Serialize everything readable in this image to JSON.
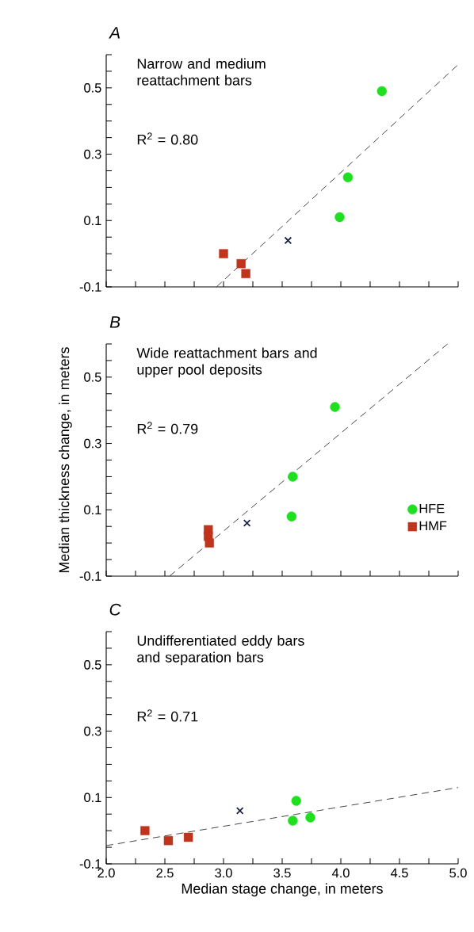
{
  "chart_data": [
    {
      "type": "scatter",
      "title": "A",
      "annotations": [
        "Narrow and medium reattachment bars",
        "R$^{2}$ = 0.80"
      ],
      "xlim": [
        2.0,
        5.0
      ],
      "ylim": [
        -0.1,
        0.6
      ],
      "tick_labels": "y",
      "xticks": [
        {
          "value": 2.0,
          "label": null
        },
        {
          "value": 2.25,
          "label": null
        },
        {
          "value": 2.5,
          "label": null
        },
        {
          "value": 2.75,
          "label": null
        },
        {
          "value": 3.0,
          "label": null
        },
        {
          "value": 3.25,
          "label": null
        },
        {
          "value": 3.5,
          "label": null
        },
        {
          "value": 3.75,
          "label": null
        },
        {
          "value": 4.0,
          "label": null
        },
        {
          "value": 4.25,
          "label": null
        },
        {
          "value": 4.5,
          "label": null
        },
        {
          "value": 4.75,
          "label": null
        },
        {
          "value": 5.0,
          "label": null
        }
      ],
      "yticks": [
        -0.1,
        {
          "value": -0.05,
          "label": null
        },
        {
          "value": 0.0,
          "label": null
        },
        {
          "value": 0.05,
          "label": null
        },
        0.1,
        {
          "value": 0.15,
          "label": null
        },
        {
          "value": 0.2,
          "label": null
        },
        {
          "value": 0.25,
          "label": null
        },
        0.3,
        {
          "value": 0.35,
          "label": null
        },
        {
          "value": 0.4,
          "label": null
        },
        {
          "value": 0.45,
          "label": null
        },
        0.5,
        {
          "value": 0.55,
          "label": null
        },
        {
          "value": 0.6,
          "label": null
        }
      ],
      "series": [
        {
          "type": "line",
          "color": "#444444",
          "line_style": "dashed",
          "marker": "none",
          "x": [
            2.94,
            5.0
          ],
          "values": [
            -0.1,
            0.57
          ]
        },
        {
          "color": "#1fe01f",
          "marker": "circle",
          "x": [
            4.35,
            4.06,
            3.99
          ],
          "values": [
            0.49,
            0.23,
            0.11
          ]
        },
        {
          "color": "#c0331c",
          "marker": "square",
          "x": [
            3.0,
            3.15,
            3.19
          ],
          "values": [
            0.0,
            -0.03,
            -0.06
          ]
        },
        {
          "color": "#1c2545",
          "marker": "cross",
          "x": [
            3.55
          ],
          "values": [
            0.04
          ]
        }
      ]
    },
    {
      "type": "scatter",
      "title": "B",
      "ylabel": "Median thickness change, in meters",
      "annotations": [
        "Wide reattachment bars and upper pool deposits",
        "R$^{2}$ = 0.79"
      ],
      "xlim": [
        2.0,
        5.0
      ],
      "ylim": [
        -0.1,
        0.6
      ],
      "tick_labels": "y",
      "legend": "right",
      "xticks": [
        {
          "value": 2.0,
          "label": null
        },
        {
          "value": 2.25,
          "label": null
        },
        {
          "value": 2.5,
          "label": null
        },
        {
          "value": 2.75,
          "label": null
        },
        {
          "value": 3.0,
          "label": null
        },
        {
          "value": 3.25,
          "label": null
        },
        {
          "value": 3.5,
          "label": null
        },
        {
          "value": 3.75,
          "label": null
        },
        {
          "value": 4.0,
          "label": null
        },
        {
          "value": 4.25,
          "label": null
        },
        {
          "value": 4.5,
          "label": null
        },
        {
          "value": 4.75,
          "label": null
        },
        {
          "value": 5.0,
          "label": null
        }
      ],
      "yticks": [
        -0.1,
        {
          "value": -0.05,
          "label": null
        },
        {
          "value": 0.0,
          "label": null
        },
        {
          "value": 0.05,
          "label": null
        },
        0.1,
        {
          "value": 0.15,
          "label": null
        },
        {
          "value": 0.2,
          "label": null
        },
        {
          "value": 0.25,
          "label": null
        },
        0.3,
        {
          "value": 0.35,
          "label": null
        },
        {
          "value": 0.4,
          "label": null
        },
        {
          "value": 0.45,
          "label": null
        },
        0.5,
        {
          "value": 0.55,
          "label": null
        },
        {
          "value": 0.6,
          "label": null
        }
      ],
      "series": [
        {
          "type": "line",
          "color": "#444444",
          "line_style": "dashed",
          "marker": "none",
          "x": [
            2.54,
            4.91
          ],
          "values": [
            -0.1,
            0.6
          ]
        },
        {
          "name": "HFE",
          "color": "#1fe01f",
          "marker": "circle",
          "x": [
            3.95,
            3.59,
            3.58
          ],
          "values": [
            0.41,
            0.2,
            0.08
          ]
        },
        {
          "name": "HMF",
          "color": "#c0331c",
          "marker": "square",
          "x": [
            2.87,
            2.87,
            2.88
          ],
          "values": [
            0.04,
            0.02,
            0.0
          ]
        },
        {
          "color": "#1c2545",
          "marker": "cross",
          "x": [
            3.2
          ],
          "values": [
            0.06
          ]
        }
      ]
    },
    {
      "type": "scatter",
      "title": "C",
      "xlabel": "Median stage change, in meters",
      "annotations": [
        "Undifferentiated eddy bars and separation bars",
        "R$^{2}$ = 0.71"
      ],
      "xlim": [
        2.0,
        5.0
      ],
      "ylim": [
        -0.1,
        0.6
      ],
      "xticks": [
        {
          "value": 2.0,
          "label": "2.0"
        },
        {
          "value": 2.25,
          "label": null
        },
        {
          "value": 2.5,
          "label": "2.5"
        },
        {
          "value": 2.75,
          "label": null
        },
        {
          "value": 3.0,
          "label": "3.0"
        },
        {
          "value": 3.25,
          "label": null
        },
        {
          "value": 3.5,
          "label": "3.5"
        },
        {
          "value": 3.75,
          "label": null
        },
        {
          "value": 4.0,
          "label": "4.0"
        },
        {
          "value": 4.25,
          "label": null
        },
        {
          "value": 4.5,
          "label": "4.5"
        },
        {
          "value": 4.75,
          "label": null
        },
        {
          "value": 5.0,
          "label": "5.0"
        }
      ],
      "yticks": [
        -0.1,
        {
          "value": -0.05,
          "label": null
        },
        {
          "value": 0.0,
          "label": null
        },
        {
          "value": 0.05,
          "label": null
        },
        0.1,
        {
          "value": 0.15,
          "label": null
        },
        {
          "value": 0.2,
          "label": null
        },
        {
          "value": 0.25,
          "label": null
        },
        0.3,
        {
          "value": 0.35,
          "label": null
        },
        {
          "value": 0.4,
          "label": null
        },
        {
          "value": 0.45,
          "label": null
        },
        0.5,
        {
          "value": 0.55,
          "label": null
        },
        {
          "value": 0.6,
          "label": null
        }
      ],
      "series": [
        {
          "type": "line",
          "color": "#444444",
          "line_style": "dashed",
          "marker": "none",
          "x": [
            2.0,
            5.0
          ],
          "values": [
            -0.045,
            0.13
          ]
        },
        {
          "color": "#1fe01f",
          "marker": "circle",
          "x": [
            3.62,
            3.59,
            3.74
          ],
          "values": [
            0.09,
            0.03,
            0.04
          ]
        },
        {
          "color": "#c0331c",
          "marker": "square",
          "x": [
            2.33,
            2.53,
            2.7
          ],
          "values": [
            0.0,
            -0.03,
            -0.02
          ]
        },
        {
          "color": "#1c2545",
          "marker": "cross",
          "x": [
            3.14
          ],
          "values": [
            0.06
          ]
        }
      ]
    }
  ]
}
